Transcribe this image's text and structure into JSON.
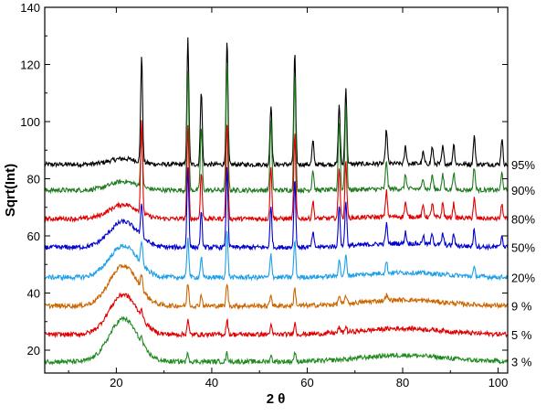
{
  "chart_data": {
    "type": "line",
    "title": "",
    "xlabel": "2 θ",
    "ylabel": "Sqrt(Int)",
    "xlim": [
      5,
      102
    ],
    "ylim": [
      12,
      140
    ],
    "x_ticks": [
      "20",
      "40",
      "60",
      "80",
      "100"
    ],
    "y_ticks": [
      "20",
      "40",
      "60",
      "80",
      "100",
      "120",
      "140"
    ],
    "grid": false,
    "legend": "right-side inline labels",
    "series": [
      {
        "name": "95%",
        "color": "#000000",
        "baseline": 85,
        "amorphous_hump": 2,
        "peaks": [
          [
            25.3,
            37
          ],
          [
            35.0,
            44
          ],
          [
            37.8,
            26
          ],
          [
            43.2,
            43
          ],
          [
            52.4,
            21
          ],
          [
            57.4,
            39
          ],
          [
            61.2,
            8
          ],
          [
            66.7,
            21
          ],
          [
            68.1,
            27
          ],
          [
            76.6,
            12
          ],
          [
            80.6,
            6
          ],
          [
            84.3,
            4
          ],
          [
            86.2,
            6
          ],
          [
            88.4,
            6
          ],
          [
            90.7,
            7
          ],
          [
            95.0,
            10
          ],
          [
            100.8,
            9
          ]
        ]
      },
      {
        "name": "90%",
        "color": "#1f7a1f",
        "baseline": 76,
        "amorphous_hump": 3,
        "peaks": [
          [
            25.3,
            20
          ],
          [
            35.0,
            42
          ],
          [
            37.8,
            22
          ],
          [
            43.2,
            45
          ],
          [
            52.4,
            24
          ],
          [
            57.4,
            40
          ],
          [
            61.2,
            7
          ],
          [
            66.7,
            24
          ],
          [
            68.1,
            30
          ],
          [
            76.6,
            10
          ],
          [
            80.6,
            5
          ],
          [
            84.3,
            4
          ],
          [
            86.2,
            5
          ],
          [
            88.4,
            5
          ],
          [
            90.7,
            6
          ],
          [
            95.0,
            8
          ],
          [
            100.8,
            6
          ]
        ]
      },
      {
        "name": "80%",
        "color": "#e00000",
        "baseline": 66,
        "amorphous_hump": 5,
        "peaks": [
          [
            25.3,
            32
          ],
          [
            35.0,
            32
          ],
          [
            37.8,
            16
          ],
          [
            43.2,
            34
          ],
          [
            52.4,
            18
          ],
          [
            57.4,
            30
          ],
          [
            61.2,
            6
          ],
          [
            66.7,
            18
          ],
          [
            68.1,
            20
          ],
          [
            76.6,
            9
          ],
          [
            80.6,
            5
          ],
          [
            84.3,
            4
          ],
          [
            86.2,
            5
          ],
          [
            88.4,
            5
          ],
          [
            90.7,
            5
          ],
          [
            95.0,
            7
          ],
          [
            100.8,
            5
          ]
        ]
      },
      {
        "name": "50%",
        "color": "#0000d0",
        "baseline": 56,
        "amorphous_hump": 9,
        "peaks": [
          [
            25.3,
            12
          ],
          [
            35.0,
            28
          ],
          [
            37.8,
            12
          ],
          [
            43.2,
            28
          ],
          [
            52.4,
            14
          ],
          [
            57.4,
            24
          ],
          [
            61.2,
            5
          ],
          [
            66.7,
            14
          ],
          [
            68.1,
            16
          ],
          [
            76.6,
            7
          ],
          [
            80.6,
            4
          ],
          [
            84.3,
            3
          ],
          [
            86.2,
            4
          ],
          [
            88.4,
            4
          ],
          [
            90.7,
            4
          ],
          [
            95.0,
            6
          ],
          [
            100.8,
            4
          ]
        ]
      },
      {
        "name": "20%",
        "color": "#1e9fe8",
        "baseline": 45.5,
        "amorphous_hump": 11,
        "peaks": [
          [
            25.3,
            8
          ],
          [
            35.0,
            14
          ],
          [
            37.8,
            7
          ],
          [
            43.2,
            16
          ],
          [
            52.4,
            8
          ],
          [
            57.4,
            13
          ],
          [
            66.7,
            6
          ],
          [
            68.1,
            7
          ],
          [
            76.6,
            4
          ],
          [
            95.0,
            3
          ]
        ]
      },
      {
        "name": "9 %",
        "color": "#cc6600",
        "baseline": 35.5,
        "amorphous_hump": 14,
        "peaks": [
          [
            25.3,
            5
          ],
          [
            35.0,
            8
          ],
          [
            37.8,
            4
          ],
          [
            43.2,
            8
          ],
          [
            52.4,
            4
          ],
          [
            57.4,
            6
          ],
          [
            66.7,
            3
          ],
          [
            68.1,
            3
          ],
          [
            76.6,
            2
          ]
        ]
      },
      {
        "name": "5 %",
        "color": "#e00000",
        "baseline": 25.5,
        "amorphous_hump": 14,
        "peaks": [
          [
            25.3,
            3
          ],
          [
            35.0,
            5
          ],
          [
            43.2,
            5
          ],
          [
            52.4,
            3
          ],
          [
            57.4,
            4
          ],
          [
            66.7,
            2
          ],
          [
            68.1,
            2
          ]
        ]
      },
      {
        "name": "3 %",
        "color": "#1f8a1f",
        "baseline": 16,
        "amorphous_hump": 15,
        "peaks": [
          [
            25.3,
            2
          ],
          [
            35.0,
            3
          ],
          [
            43.2,
            3
          ],
          [
            52.4,
            2
          ],
          [
            57.4,
            3
          ]
        ]
      }
    ]
  }
}
